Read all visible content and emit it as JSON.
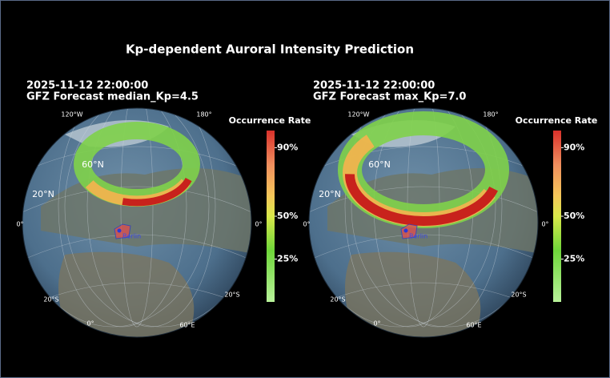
{
  "title": "Kp-dependent Auroral Intensity Prediction",
  "panels": [
    {
      "timestamp": "2025-11-12 22:00:00",
      "subtitle": "GFZ Forecast median_Kp=4.5",
      "grid_labels": [
        "120°W",
        "180°",
        "60°N",
        "20°N",
        "0°",
        "0°",
        "20°S",
        "20°S",
        "0°",
        "60°E"
      ],
      "city": "Berlin",
      "colorbar": {
        "label": "Occurrence Rate",
        "lim": [
          0,
          100
        ],
        "ticks": [
          {
            "value": 90,
            "label": "90%"
          },
          {
            "value": 50,
            "label": "50%"
          },
          {
            "value": 25,
            "label": "25%"
          }
        ]
      }
    },
    {
      "timestamp": "2025-11-12 22:00:00",
      "subtitle": "GFZ Forecast max_Kp=7.0",
      "grid_labels": [
        "120°W",
        "180°",
        "60°N",
        "20°N",
        "0°",
        "0°",
        "20°S",
        "20°S",
        "0°",
        "60°E"
      ],
      "city": "Berlin",
      "colorbar": {
        "label": "Occurrence Rate",
        "lim": [
          0,
          100
        ],
        "ticks": [
          {
            "value": 90,
            "label": "90%"
          },
          {
            "value": 50,
            "label": "50%"
          },
          {
            "value": 25,
            "label": "25%"
          }
        ]
      }
    }
  ]
}
